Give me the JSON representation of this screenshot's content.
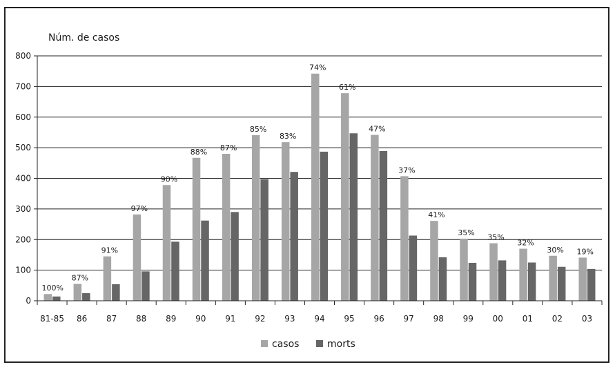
{
  "chart_data": {
    "type": "bar",
    "title": "",
    "ylabel": "Núm. de casos",
    "xlabel": "",
    "ylim": [
      0,
      800
    ],
    "yticks": [
      0,
      100,
      200,
      300,
      400,
      500,
      600,
      700,
      800
    ],
    "grid": true,
    "legend_position": "bottom",
    "categories": [
      "81-85",
      "86",
      "87",
      "88",
      "89",
      "90",
      "91",
      "92",
      "93",
      "94",
      "95",
      "96",
      "97",
      "98",
      "99",
      "00",
      "01",
      "02",
      "03"
    ],
    "series": [
      {
        "name": "casos",
        "color": "#a6a6a6",
        "values": [
          22,
          55,
          145,
          282,
          378,
          467,
          480,
          541,
          518,
          742,
          678,
          542,
          407,
          261,
          203,
          188,
          170,
          147,
          141
        ]
      },
      {
        "name": "morts",
        "color": "#666666",
        "values": [
          14,
          25,
          54,
          96,
          193,
          262,
          290,
          397,
          421,
          487,
          547,
          489,
          213,
          142,
          124,
          132,
          125,
          111,
          104
        ]
      }
    ],
    "percent_labels": [
      "100%",
      "87%",
      "91%",
      "97%",
      "90%",
      "88%",
      "87%",
      "85%",
      "83%",
      "74%",
      "61%",
      "47%",
      "37%",
      "41%",
      "35%",
      "35%",
      "32%",
      "30%",
      "19%"
    ]
  }
}
